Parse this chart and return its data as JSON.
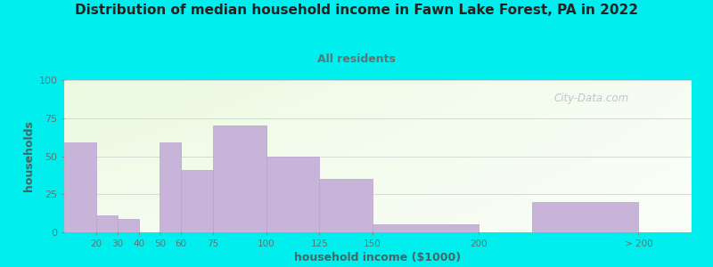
{
  "title": "Distribution of median household income in Fawn Lake Forest, PA in 2022",
  "subtitle": "All residents",
  "xlabel": "household income ($1000)",
  "ylabel": "households",
  "bar_labels": [
    "20",
    "30",
    "40",
    "50",
    "60",
    "75",
    "100",
    "125",
    "150",
    "200",
    "> 200"
  ],
  "bar_values": [
    59,
    11,
    9,
    0,
    59,
    41,
    70,
    50,
    35,
    5,
    20
  ],
  "bar_color": "#c8b4d8",
  "bar_edgecolor": "#b8a4cc",
  "yticks": [
    0,
    25,
    50,
    75,
    100
  ],
  "ylim": [
    0,
    100
  ],
  "background_outer": "#00eeee",
  "title_color": "#222222",
  "subtitle_color": "#557777",
  "axis_label_color": "#446666",
  "tick_color": "#557777",
  "grid_color": "#cccccc",
  "watermark_text": "City-Data.com",
  "watermark_color": "#b0b8c8",
  "bar_lefts": [
    5,
    20,
    30,
    40,
    50,
    60,
    75,
    100,
    125,
    150,
    225
  ],
  "bar_widths": [
    15,
    10,
    10,
    10,
    10,
    15,
    25,
    25,
    25,
    50,
    50
  ],
  "xtick_positions": [
    20,
    30,
    40,
    50,
    60,
    75,
    100,
    125,
    150,
    200,
    275
  ],
  "xlim": [
    5,
    300
  ]
}
